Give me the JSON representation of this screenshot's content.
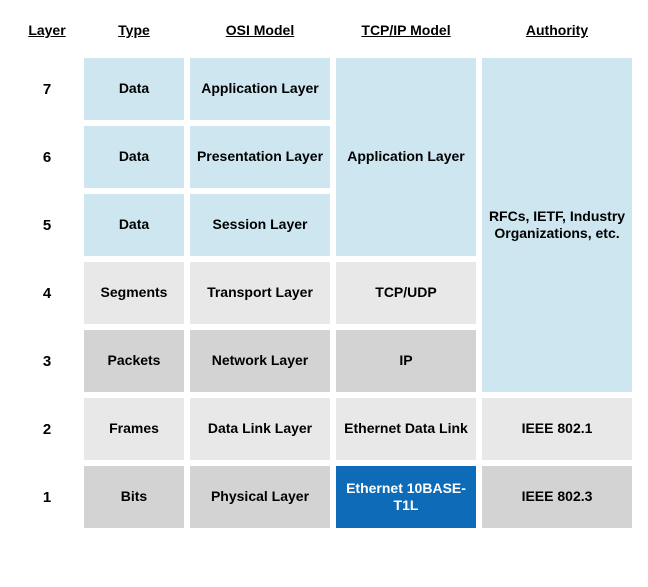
{
  "colors": {
    "light_blue": "#cde6f0",
    "light_gray": "#e8e8e8",
    "mid_gray": "#d3d3d3",
    "dark_blue": "#0d6bb8",
    "white": "#ffffff",
    "text_dark": "#1a1a1a"
  },
  "headers": {
    "layer": "Layer",
    "type": "Type",
    "osi": "OSI Model",
    "tcpip": "TCP/IP Model",
    "authority": "Authority"
  },
  "layer_numbers": [
    "7",
    "6",
    "5",
    "4",
    "3",
    "2",
    "1"
  ],
  "type_col": [
    {
      "label": "Data",
      "color": "light_blue"
    },
    {
      "label": "Data",
      "color": "light_blue"
    },
    {
      "label": "Data",
      "color": "light_blue"
    },
    {
      "label": "Segments",
      "color": "light_gray"
    },
    {
      "label": "Packets",
      "color": "mid_gray"
    },
    {
      "label": "Frames",
      "color": "light_gray"
    },
    {
      "label": "Bits",
      "color": "mid_gray"
    }
  ],
  "osi_col": [
    {
      "label": "Application Layer",
      "color": "light_blue"
    },
    {
      "label": "Presentation Layer",
      "color": "light_blue"
    },
    {
      "label": "Session Layer",
      "color": "light_blue"
    },
    {
      "label": "Transport Layer",
      "color": "light_gray"
    },
    {
      "label": "Network Layer",
      "color": "mid_gray"
    },
    {
      "label": "Data Link Layer",
      "color": "light_gray"
    },
    {
      "label": "Physical Layer",
      "color": "mid_gray"
    }
  ],
  "tcpip_col": {
    "app": {
      "label": "Application Layer",
      "color": "light_blue",
      "row_start": 2,
      "row_span": 3
    },
    "tcpudp": {
      "label": "TCP/UDP",
      "color": "light_gray"
    },
    "ip": {
      "label": "IP",
      "color": "mid_gray"
    },
    "eth_dl": {
      "label": "Ethernet Data Link",
      "color": "light_gray"
    },
    "eth_10b": {
      "label": "Ethernet 10BASE-T1L",
      "color": "dark_blue",
      "text_color": "white"
    }
  },
  "authority_col": {
    "rfcs": {
      "label": "RFCs, IETF, Industry Organizations, etc.",
      "color": "light_blue",
      "row_start": 2,
      "row_span": 5
    },
    "ieee8021": {
      "label": "IEEE 802.1",
      "color": "light_gray"
    },
    "ieee8023": {
      "label": "IEEE 802.3",
      "color": "mid_gray"
    }
  }
}
